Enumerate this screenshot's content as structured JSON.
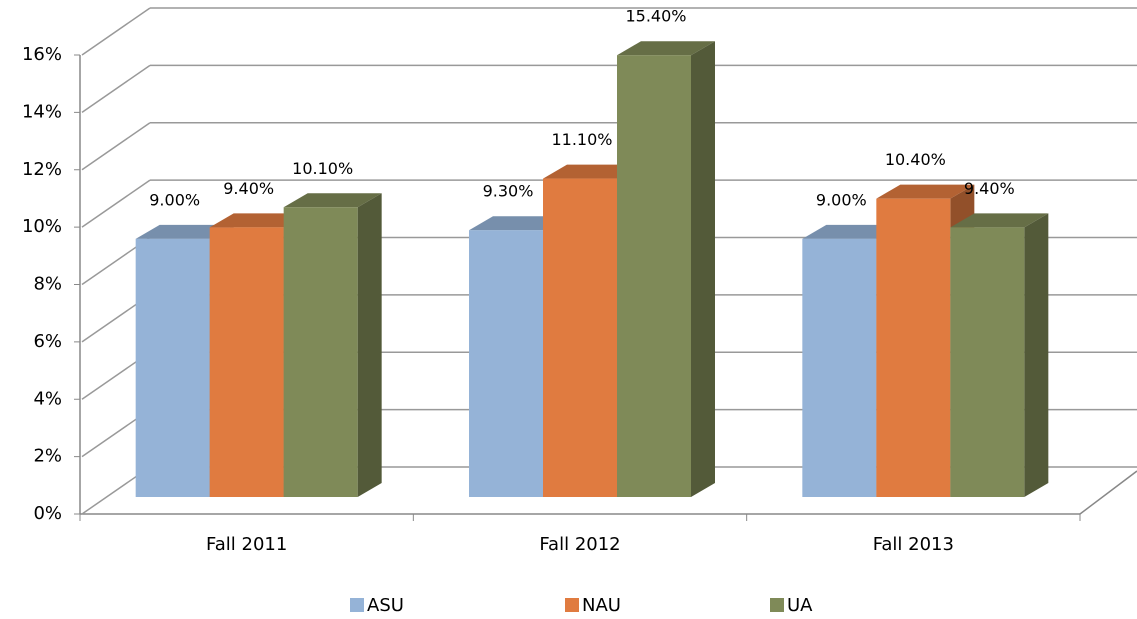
{
  "chart_data": {
    "type": "bar3d",
    "categories": [
      "Fall 2011",
      "Fall 2012",
      "Fall 2013"
    ],
    "series": [
      {
        "name": "ASU",
        "color": "#95b3d7",
        "values": [
          9.0,
          9.3,
          9.0
        ],
        "value_labels": [
          "9.00%",
          "9.30%",
          "9.00%"
        ]
      },
      {
        "name": "NAU",
        "color": "#e07b40",
        "values": [
          9.4,
          11.1,
          10.4
        ],
        "value_labels": [
          "9.40%",
          "11.10%",
          "10.40%"
        ]
      },
      {
        "name": "UA",
        "color": "#7f8a58",
        "values": [
          10.1,
          15.4,
          9.4
        ],
        "value_labels": [
          "10.10%",
          "15.40%",
          "9.40%"
        ]
      }
    ],
    "ylim": [
      0,
      16
    ],
    "yticks": [
      {
        "value": 0,
        "label": "0%"
      },
      {
        "value": 2,
        "label": "2%"
      },
      {
        "value": 4,
        "label": "4%"
      },
      {
        "value": 6,
        "label": "6%"
      },
      {
        "value": 8,
        "label": "8%"
      },
      {
        "value": 10,
        "label": "10%"
      },
      {
        "value": 12,
        "label": "12%"
      },
      {
        "value": 14,
        "label": "14%"
      },
      {
        "value": 16,
        "label": "16%"
      }
    ],
    "grid": true,
    "legend": "bottom"
  }
}
